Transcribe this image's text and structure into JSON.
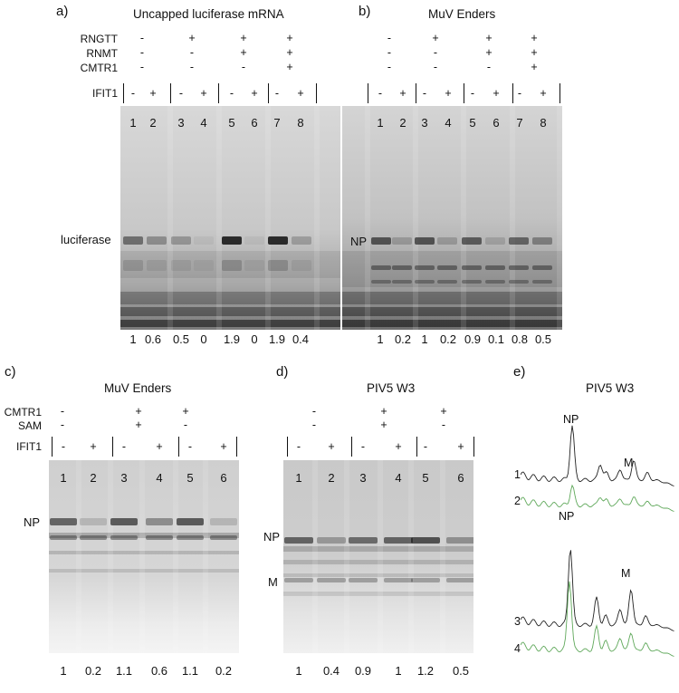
{
  "panels": {
    "a": {
      "label": "a)",
      "title": "Uncapped luciferase mRNA",
      "row_labels": [
        "RNGTT",
        "RNMT",
        "CMTR1"
      ],
      "ifit_label": "IFIT1",
      "pairs": [
        [
          "-",
          "-",
          "-"
        ],
        [
          "+",
          "-",
          "-"
        ],
        [
          "+",
          "+",
          "-"
        ],
        [
          "+",
          "+",
          "+"
        ]
      ],
      "ifit": [
        "-",
        "+",
        "-",
        "+",
        "-",
        "+",
        "-",
        "+"
      ],
      "lanes": [
        "1",
        "2",
        "3",
        "4",
        "5",
        "6",
        "7",
        "8"
      ],
      "band_label": "luciferase",
      "quant": [
        "1",
        "0.6",
        "0.5",
        "0",
        "1.9",
        "0",
        "1.9",
        "0.4"
      ]
    },
    "b": {
      "label": "b)",
      "title": "MuV Enders",
      "pairs": [
        [
          "-",
          "-",
          "-"
        ],
        [
          "+",
          "-",
          "-"
        ],
        [
          "+",
          "+",
          "-"
        ],
        [
          "+",
          "+",
          "+"
        ]
      ],
      "ifit": [
        "-",
        "+",
        "-",
        "+",
        "-",
        "+",
        "-",
        "+"
      ],
      "lanes": [
        "1",
        "2",
        "3",
        "4",
        "5",
        "6",
        "7",
        "8"
      ],
      "band_label": "NP",
      "quant": [
        "1",
        "0.2",
        "1",
        "0.2",
        "0.9",
        "0.1",
        "0.8",
        "0.5"
      ]
    },
    "c": {
      "label": "c)",
      "title": "MuV Enders",
      "row_labels": [
        "CMTR1",
        "SAM"
      ],
      "ifit_label": "IFIT1",
      "pairs": [
        [
          "-",
          "-"
        ],
        [
          "+",
          "+"
        ],
        [
          "+",
          "-"
        ]
      ],
      "ifit": [
        "-",
        "+",
        "-",
        "+",
        "-",
        "+"
      ],
      "lanes": [
        "1",
        "2",
        "3",
        "4",
        "5",
        "6"
      ],
      "band_label": "NP",
      "quant": [
        "1",
        "0.2",
        "1.1",
        "0.6",
        "1.1",
        "0.2"
      ]
    },
    "d": {
      "label": "d)",
      "title": "PIV5 W3",
      "pairs": [
        [
          "-",
          "-"
        ],
        [
          "+",
          "+"
        ],
        [
          "+",
          "-"
        ]
      ],
      "ifit": [
        "-",
        "+",
        "-",
        "+",
        "-",
        "+"
      ],
      "lanes": [
        "1",
        "2",
        "3",
        "4",
        "5",
        "6"
      ],
      "band_labels": [
        "NP",
        "M"
      ],
      "quant": [
        "1",
        "0.4",
        "0.9",
        "1",
        "1.2",
        "0.5"
      ]
    },
    "e": {
      "label": "e)",
      "title": "PIV5 W3",
      "traces": [
        {
          "row": "1",
          "peak_np": "NP",
          "peak_m": "M",
          "color": "#222222"
        },
        {
          "row": "2",
          "color": "#5fa85a"
        },
        {
          "row": "3",
          "peak_np": "NP",
          "peak_m": "M",
          "color": "#222222"
        },
        {
          "row": "4",
          "color": "#5fa85a"
        }
      ]
    }
  }
}
